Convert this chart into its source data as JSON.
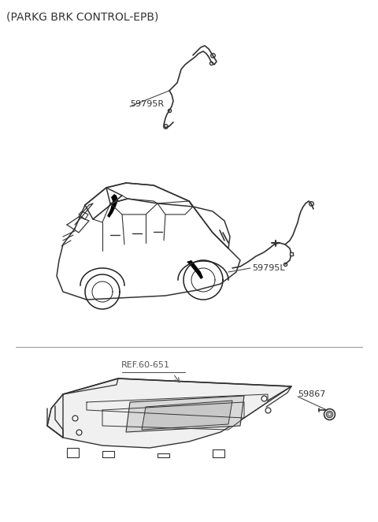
{
  "title": "(PARKG BRK CONTROL-EPB)",
  "title_fontsize": 10,
  "bg_color": "#ffffff",
  "label_59795R": "59795R",
  "label_59795L": "59795L",
  "label_REF": "REF.60-651",
  "label_59867": "59867",
  "label_color": "#333333",
  "line_color": "#333333",
  "car_color": "#222222",
  "part_color": "#111111"
}
